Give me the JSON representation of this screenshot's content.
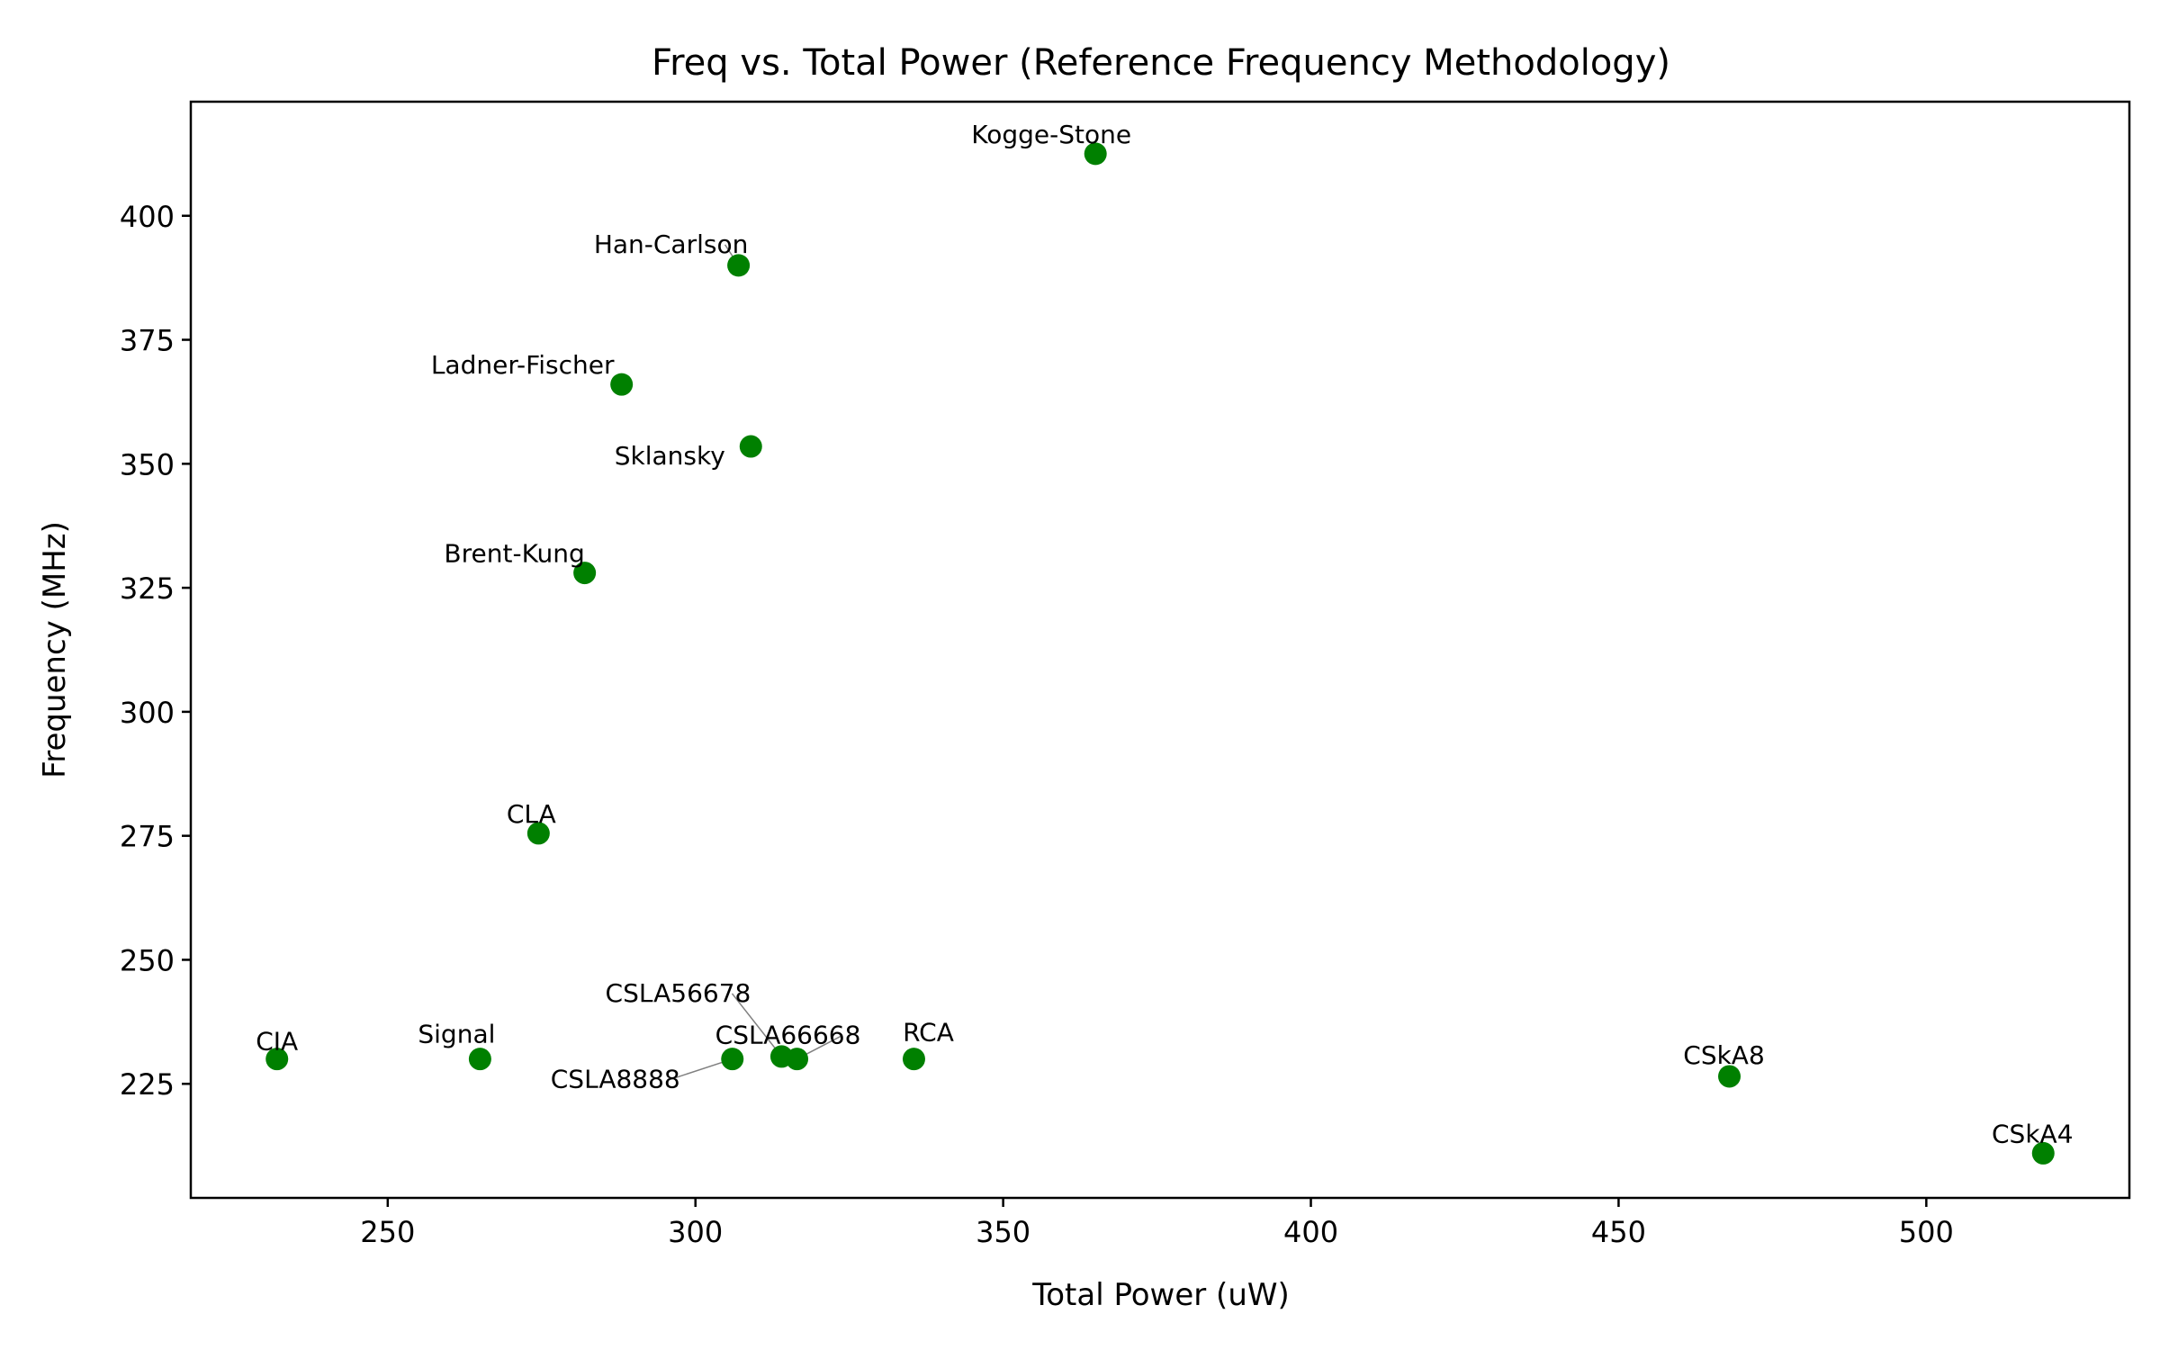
{
  "chart_data": {
    "type": "scatter",
    "title": "Freq vs. Total Power (Reference Frequency Methodology)",
    "xlabel": "Total Power (uW)",
    "ylabel": "Frequency (MHz)",
    "xlim": [
      218,
      533
    ],
    "ylim": [
      202,
      423
    ],
    "xticks": [
      250,
      300,
      350,
      400,
      450,
      500
    ],
    "yticks": [
      225,
      250,
      275,
      300,
      325,
      350,
      375,
      400
    ],
    "grid": false,
    "marker_color": "#008000",
    "points": [
      {
        "label": "CIA",
        "x": 232,
        "y": 230
      },
      {
        "label": "Signal",
        "x": 265,
        "y": 230
      },
      {
        "label": "CLA",
        "x": 274.5,
        "y": 275.5
      },
      {
        "label": "Brent-Kung",
        "x": 282,
        "y": 328
      },
      {
        "label": "Ladner-Fischer",
        "x": 288,
        "y": 366
      },
      {
        "label": "CSLA8888",
        "x": 306,
        "y": 230
      },
      {
        "label": "Han-Carlson",
        "x": 307,
        "y": 390
      },
      {
        "label": "Sklansky",
        "x": 309,
        "y": 353.5
      },
      {
        "label": "CSLA56678",
        "x": 314,
        "y": 230.5
      },
      {
        "label": "CSLA66668",
        "x": 316.5,
        "y": 230
      },
      {
        "label": "RCA",
        "x": 335.5,
        "y": 230
      },
      {
        "label": "Kogge-Stone",
        "x": 365,
        "y": 412.5
      },
      {
        "label": "CSkA8",
        "x": 468,
        "y": 226.5
      },
      {
        "label": "CSkA4",
        "x": 519,
        "y": 211
      }
    ]
  }
}
